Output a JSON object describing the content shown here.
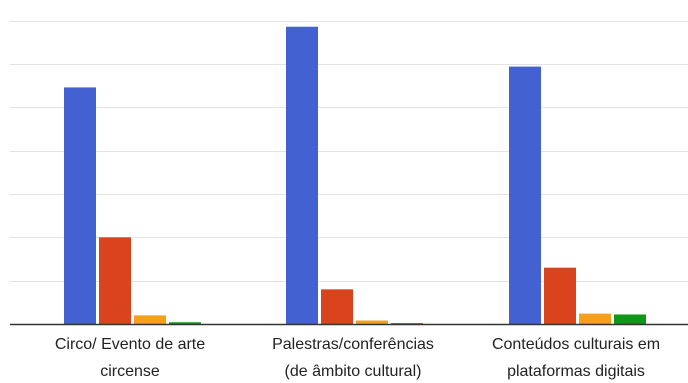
{
  "chart_data": {
    "type": "bar",
    "categories": [
      [
        "Circo/ Evento de arte",
        "circense"
      ],
      [
        "Palestras/conferências",
        "(de âmbito cultural)"
      ],
      [
        "Conteúdos culturais em",
        "plataformas digitais"
      ]
    ],
    "series": [
      {
        "color": "#4361D0",
        "values": [
          273,
          343,
          297
        ]
      },
      {
        "color": "#D9431E",
        "values": [
          100,
          40,
          65
        ]
      },
      {
        "color": "#F5A01D",
        "values": [
          10,
          4,
          12
        ]
      },
      {
        "color": "#109618",
        "values": [
          2,
          1,
          11
        ]
      }
    ],
    "ylim": [
      0,
      360
    ],
    "grid_step": 50,
    "grid": true,
    "legend": "none"
  }
}
